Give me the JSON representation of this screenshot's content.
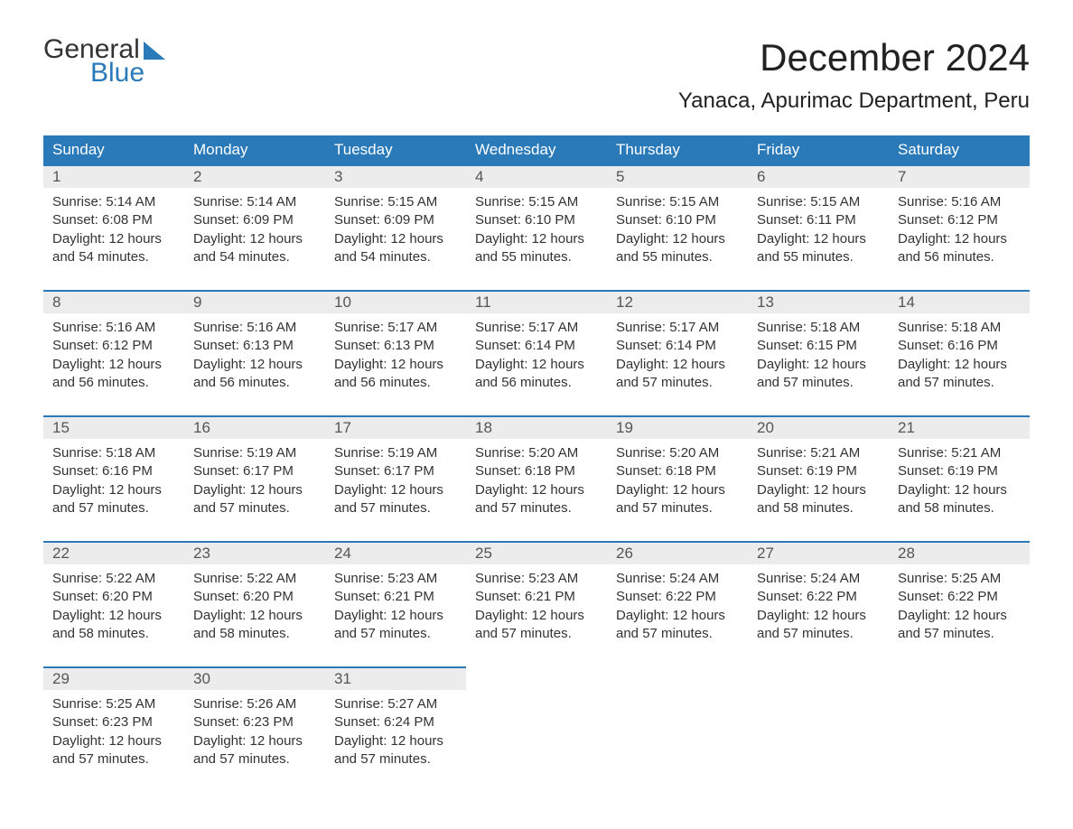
{
  "brand": {
    "word1": "General",
    "word2": "Blue"
  },
  "title": "December 2024",
  "location": "Yanaca, Apurimac Department, Peru",
  "colors": {
    "header_bg": "#2a7ab9",
    "header_text": "#ffffff",
    "daynum_bg": "#ececec",
    "daynum_text": "#555555",
    "body_text": "#333333",
    "border": "#2a7ab9",
    "page_bg": "#ffffff"
  },
  "fonts": {
    "family": "Arial",
    "title_size_pt": 32,
    "location_size_pt": 18,
    "dayheader_size_pt": 13,
    "daynum_size_pt": 13,
    "body_size_pt": 11
  },
  "day_headers": [
    "Sunday",
    "Monday",
    "Tuesday",
    "Wednesday",
    "Thursday",
    "Friday",
    "Saturday"
  ],
  "labels": {
    "sunrise": "Sunrise:",
    "sunset": "Sunset:",
    "daylight_prefix": "Daylight:"
  },
  "weeks": [
    [
      {
        "n": "1",
        "sunrise": "5:14 AM",
        "sunset": "6:08 PM",
        "daylight": "12 hours and 54 minutes."
      },
      {
        "n": "2",
        "sunrise": "5:14 AM",
        "sunset": "6:09 PM",
        "daylight": "12 hours and 54 minutes."
      },
      {
        "n": "3",
        "sunrise": "5:15 AM",
        "sunset": "6:09 PM",
        "daylight": "12 hours and 54 minutes."
      },
      {
        "n": "4",
        "sunrise": "5:15 AM",
        "sunset": "6:10 PM",
        "daylight": "12 hours and 55 minutes."
      },
      {
        "n": "5",
        "sunrise": "5:15 AM",
        "sunset": "6:10 PM",
        "daylight": "12 hours and 55 minutes."
      },
      {
        "n": "6",
        "sunrise": "5:15 AM",
        "sunset": "6:11 PM",
        "daylight": "12 hours and 55 minutes."
      },
      {
        "n": "7",
        "sunrise": "5:16 AM",
        "sunset": "6:12 PM",
        "daylight": "12 hours and 56 minutes."
      }
    ],
    [
      {
        "n": "8",
        "sunrise": "5:16 AM",
        "sunset": "6:12 PM",
        "daylight": "12 hours and 56 minutes."
      },
      {
        "n": "9",
        "sunrise": "5:16 AM",
        "sunset": "6:13 PM",
        "daylight": "12 hours and 56 minutes."
      },
      {
        "n": "10",
        "sunrise": "5:17 AM",
        "sunset": "6:13 PM",
        "daylight": "12 hours and 56 minutes."
      },
      {
        "n": "11",
        "sunrise": "5:17 AM",
        "sunset": "6:14 PM",
        "daylight": "12 hours and 56 minutes."
      },
      {
        "n": "12",
        "sunrise": "5:17 AM",
        "sunset": "6:14 PM",
        "daylight": "12 hours and 57 minutes."
      },
      {
        "n": "13",
        "sunrise": "5:18 AM",
        "sunset": "6:15 PM",
        "daylight": "12 hours and 57 minutes."
      },
      {
        "n": "14",
        "sunrise": "5:18 AM",
        "sunset": "6:16 PM",
        "daylight": "12 hours and 57 minutes."
      }
    ],
    [
      {
        "n": "15",
        "sunrise": "5:18 AM",
        "sunset": "6:16 PM",
        "daylight": "12 hours and 57 minutes."
      },
      {
        "n": "16",
        "sunrise": "5:19 AM",
        "sunset": "6:17 PM",
        "daylight": "12 hours and 57 minutes."
      },
      {
        "n": "17",
        "sunrise": "5:19 AM",
        "sunset": "6:17 PM",
        "daylight": "12 hours and 57 minutes."
      },
      {
        "n": "18",
        "sunrise": "5:20 AM",
        "sunset": "6:18 PM",
        "daylight": "12 hours and 57 minutes."
      },
      {
        "n": "19",
        "sunrise": "5:20 AM",
        "sunset": "6:18 PM",
        "daylight": "12 hours and 57 minutes."
      },
      {
        "n": "20",
        "sunrise": "5:21 AM",
        "sunset": "6:19 PM",
        "daylight": "12 hours and 58 minutes."
      },
      {
        "n": "21",
        "sunrise": "5:21 AM",
        "sunset": "6:19 PM",
        "daylight": "12 hours and 58 minutes."
      }
    ],
    [
      {
        "n": "22",
        "sunrise": "5:22 AM",
        "sunset": "6:20 PM",
        "daylight": "12 hours and 58 minutes."
      },
      {
        "n": "23",
        "sunrise": "5:22 AM",
        "sunset": "6:20 PM",
        "daylight": "12 hours and 58 minutes."
      },
      {
        "n": "24",
        "sunrise": "5:23 AM",
        "sunset": "6:21 PM",
        "daylight": "12 hours and 57 minutes."
      },
      {
        "n": "25",
        "sunrise": "5:23 AM",
        "sunset": "6:21 PM",
        "daylight": "12 hours and 57 minutes."
      },
      {
        "n": "26",
        "sunrise": "5:24 AM",
        "sunset": "6:22 PM",
        "daylight": "12 hours and 57 minutes."
      },
      {
        "n": "27",
        "sunrise": "5:24 AM",
        "sunset": "6:22 PM",
        "daylight": "12 hours and 57 minutes."
      },
      {
        "n": "28",
        "sunrise": "5:25 AM",
        "sunset": "6:22 PM",
        "daylight": "12 hours and 57 minutes."
      }
    ],
    [
      {
        "n": "29",
        "sunrise": "5:25 AM",
        "sunset": "6:23 PM",
        "daylight": "12 hours and 57 minutes."
      },
      {
        "n": "30",
        "sunrise": "5:26 AM",
        "sunset": "6:23 PM",
        "daylight": "12 hours and 57 minutes."
      },
      {
        "n": "31",
        "sunrise": "5:27 AM",
        "sunset": "6:24 PM",
        "daylight": "12 hours and 57 minutes."
      },
      null,
      null,
      null,
      null
    ]
  ]
}
